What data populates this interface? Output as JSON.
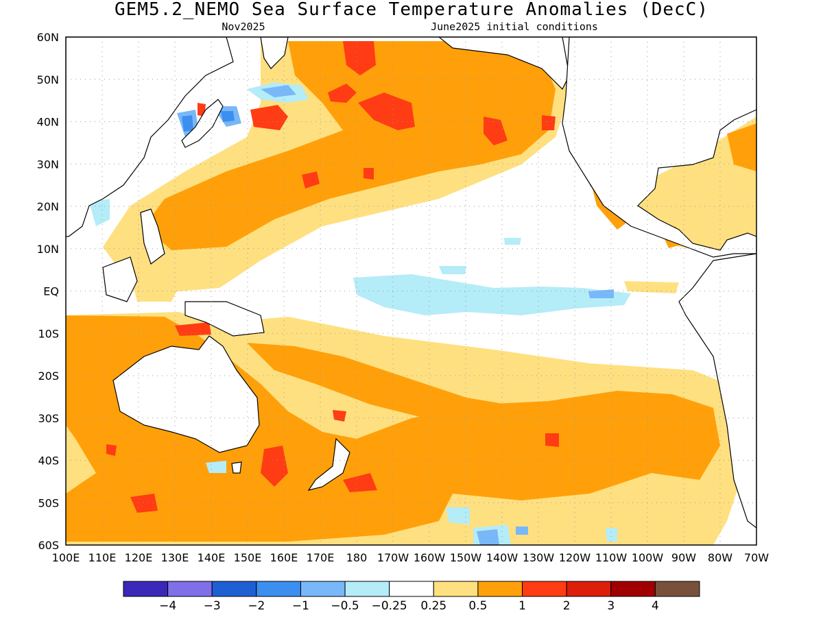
{
  "title": "GEM5.2_NEMO Sea Surface Temperature Anomalies (DecC)",
  "subtitle_left": "Nov2025",
  "subtitle_right": "June2025 initial conditions",
  "chart_data": {
    "type": "heatmap",
    "title": "GEM5.2_NEMO Sea Surface Temperature Anomalies (DecC)",
    "xlim": [
      100,
      290
    ],
    "ylim": [
      -60,
      60
    ],
    "grid": true,
    "x_ticks": [
      "100E",
      "110E",
      "120E",
      "130E",
      "140E",
      "150E",
      "160E",
      "170E",
      "180",
      "170W",
      "160W",
      "150W",
      "140W",
      "130W",
      "120W",
      "110W",
      "100W",
      "90W",
      "80W",
      "70W"
    ],
    "y_ticks": [
      "60N",
      "50N",
      "40N",
      "30N",
      "20N",
      "10N",
      "EQ",
      "10S",
      "20S",
      "30S",
      "40S",
      "50S",
      "60S"
    ],
    "colorbar": {
      "labels": [
        "−4",
        "−3",
        "−2",
        "−1",
        "−0.5",
        "−0.25",
        "0.25",
        "0.5",
        "1",
        "2",
        "3",
        "4"
      ],
      "colors": [
        "#3a28b8",
        "#7f6fe8",
        "#1e5fd4",
        "#3c8ff0",
        "#78b8f8",
        "#b4ecf8",
        "#ffffff",
        "#ffe080",
        "#ffa00a",
        "#ff3c14",
        "#dc1e0a",
        "#a00000",
        "#78503c"
      ]
    }
  }
}
